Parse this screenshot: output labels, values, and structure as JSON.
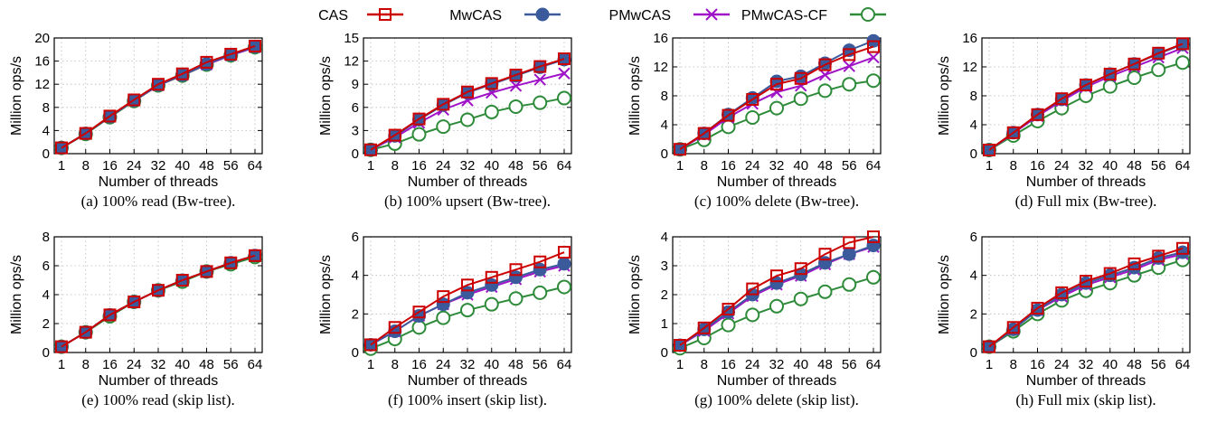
{
  "legend": [
    {
      "name": "CAS",
      "color": "#cc0000",
      "marker": "square"
    },
    {
      "name": "MwCAS",
      "color": "#3a5a9c",
      "marker": "circle-filled"
    },
    {
      "name": "PMwCAS",
      "color": "#a012c8",
      "marker": "cross"
    },
    {
      "name": "PMwCAS-CF",
      "color": "#2e8b3a",
      "marker": "circle-open"
    }
  ],
  "chart_data": [
    {
      "type": "line",
      "caption": "(a) 100% read (Bw-tree).",
      "xlabel": "Number of threads",
      "ylabel": "Million ops/s",
      "categories": [
        "1",
        "8",
        "16",
        "24",
        "32",
        "40",
        "48",
        "56",
        "64"
      ],
      "yticks": [
        0,
        4,
        8,
        12,
        16,
        20
      ],
      "ylim": [
        0,
        20
      ],
      "series": [
        {
          "name": "CAS",
          "values": [
            1.0,
            3.5,
            6.5,
            9.3,
            12.0,
            13.8,
            15.8,
            17.2,
            18.6
          ]
        },
        {
          "name": "MwCAS",
          "values": [
            1.0,
            3.5,
            6.4,
            9.2,
            11.9,
            13.6,
            15.5,
            17.1,
            18.5
          ]
        },
        {
          "name": "PMwCAS",
          "values": [
            1.0,
            3.5,
            6.4,
            9.2,
            11.8,
            13.6,
            15.4,
            17.0,
            18.4
          ]
        },
        {
          "name": "PMwCAS-CF",
          "values": [
            1.0,
            3.4,
            6.3,
            9.1,
            11.8,
            13.5,
            15.4,
            17.0,
            18.4
          ]
        }
      ]
    },
    {
      "type": "line",
      "caption": "(b) 100% upsert (Bw-tree).",
      "xlabel": "Number of threads",
      "ylabel": "Million ops/s",
      "categories": [
        "1",
        "8",
        "16",
        "24",
        "32",
        "40",
        "48",
        "56",
        "64"
      ],
      "yticks": [
        0,
        3,
        6,
        9,
        12,
        15
      ],
      "ylim": [
        0,
        15
      ],
      "series": [
        {
          "name": "CAS",
          "values": [
            0.5,
            2.4,
            4.5,
            6.4,
            8.0,
            9.1,
            10.2,
            11.3,
            12.3
          ]
        },
        {
          "name": "MwCAS",
          "values": [
            0.5,
            2.3,
            4.4,
            6.3,
            7.9,
            9.0,
            10.1,
            11.2,
            12.2
          ]
        },
        {
          "name": "PMwCAS",
          "values": [
            0.5,
            2.1,
            4.0,
            5.7,
            6.9,
            7.9,
            8.8,
            9.6,
            10.4
          ]
        },
        {
          "name": "PMwCAS-CF",
          "values": [
            0.5,
            1.3,
            2.5,
            3.5,
            4.4,
            5.4,
            6.1,
            6.6,
            7.2
          ]
        }
      ]
    },
    {
      "type": "line",
      "caption": "(c) 100% delete (Bw-tree).",
      "xlabel": "Number of threads",
      "ylabel": "Million ops/s",
      "categories": [
        "1",
        "8",
        "16",
        "24",
        "32",
        "40",
        "48",
        "56",
        "64"
      ],
      "yticks": [
        0,
        4,
        8,
        12,
        16
      ],
      "ylim": [
        0,
        16
      ],
      "series": [
        {
          "name": "CAS",
          "values": [
            0.6,
            2.8,
            5.3,
            7.5,
            9.6,
            10.4,
            12.3,
            13.7,
            14.8
          ]
        },
        {
          "name": "MwCAS",
          "values": [
            0.6,
            2.8,
            5.4,
            7.7,
            10.0,
            10.7,
            12.5,
            14.3,
            15.6
          ]
        },
        {
          "name": "PMwCAS",
          "values": [
            0.6,
            2.6,
            5.0,
            6.9,
            8.5,
            9.4,
            10.9,
            12.1,
            13.3
          ]
        },
        {
          "name": "PMwCAS-CF",
          "values": [
            0.6,
            1.9,
            3.7,
            5.0,
            6.3,
            7.6,
            8.7,
            9.6,
            10.1
          ]
        }
      ]
    },
    {
      "type": "line",
      "caption": "(d) Full mix (Bw-tree).",
      "xlabel": "Number of threads",
      "ylabel": "Million ops/s",
      "categories": [
        "1",
        "8",
        "16",
        "24",
        "32",
        "40",
        "48",
        "56",
        "64"
      ],
      "yticks": [
        0,
        4,
        8,
        12,
        16
      ],
      "ylim": [
        0,
        16
      ],
      "series": [
        {
          "name": "CAS",
          "values": [
            0.5,
            2.9,
            5.4,
            7.6,
            9.5,
            11.0,
            12.4,
            13.9,
            15.2
          ]
        },
        {
          "name": "MwCAS",
          "values": [
            0.5,
            2.9,
            5.4,
            7.5,
            9.5,
            11.0,
            12.4,
            13.8,
            15.1
          ]
        },
        {
          "name": "PMwCAS",
          "values": [
            0.5,
            2.8,
            5.2,
            7.3,
            9.2,
            10.7,
            12.0,
            13.3,
            14.6
          ]
        },
        {
          "name": "PMwCAS-CF",
          "values": [
            0.5,
            2.5,
            4.5,
            6.3,
            8.0,
            9.3,
            10.5,
            11.6,
            12.6
          ]
        }
      ]
    },
    {
      "type": "line",
      "caption": "(e) 100% read (skip list).",
      "xlabel": "Number of threads",
      "ylabel": "Million ops/s",
      "categories": [
        "1",
        "8",
        "16",
        "24",
        "32",
        "40",
        "48",
        "56",
        "64"
      ],
      "yticks": [
        0,
        2,
        4,
        6,
        8
      ],
      "ylim": [
        0,
        8
      ],
      "series": [
        {
          "name": "CAS",
          "values": [
            0.4,
            1.4,
            2.6,
            3.5,
            4.3,
            5.0,
            5.6,
            6.2,
            6.7
          ]
        },
        {
          "name": "MwCAS",
          "values": [
            0.4,
            1.4,
            2.6,
            3.5,
            4.3,
            5.0,
            5.6,
            6.2,
            6.7
          ]
        },
        {
          "name": "PMwCAS",
          "values": [
            0.4,
            1.4,
            2.6,
            3.5,
            4.3,
            5.0,
            5.6,
            6.2,
            6.7
          ]
        },
        {
          "name": "PMwCAS-CF",
          "values": [
            0.4,
            1.4,
            2.5,
            3.5,
            4.3,
            4.9,
            5.6,
            6.1,
            6.6
          ]
        }
      ]
    },
    {
      "type": "line",
      "caption": "(f) 100% insert (skip list).",
      "xlabel": "Number of threads",
      "ylabel": "Million ops/s",
      "categories": [
        "1",
        "8",
        "16",
        "24",
        "32",
        "40",
        "48",
        "56",
        "64"
      ],
      "yticks": [
        0,
        2,
        4,
        6
      ],
      "ylim": [
        0,
        6
      ],
      "series": [
        {
          "name": "CAS",
          "values": [
            0.4,
            1.3,
            2.1,
            2.9,
            3.5,
            3.9,
            4.3,
            4.7,
            5.2
          ]
        },
        {
          "name": "MwCAS",
          "values": [
            0.4,
            1.1,
            1.9,
            2.5,
            3.1,
            3.5,
            3.9,
            4.3,
            4.6
          ]
        },
        {
          "name": "PMwCAS",
          "values": [
            0.4,
            1.1,
            1.9,
            2.5,
            3.0,
            3.4,
            3.8,
            4.2,
            4.5
          ]
        },
        {
          "name": "PMwCAS-CF",
          "values": [
            0.2,
            0.7,
            1.3,
            1.8,
            2.2,
            2.5,
            2.8,
            3.1,
            3.4
          ]
        }
      ]
    },
    {
      "type": "line",
      "caption": "(g) 100% delete (skip list).",
      "xlabel": "Number of threads",
      "ylabel": "Million ops/s",
      "categories": [
        "1",
        "8",
        "16",
        "24",
        "32",
        "40",
        "48",
        "56",
        "64"
      ],
      "yticks": [
        0,
        1,
        2,
        3,
        4
      ],
      "ylim": [
        0,
        4
      ],
      "series": [
        {
          "name": "CAS",
          "values": [
            0.25,
            0.85,
            1.5,
            2.2,
            2.65,
            2.9,
            3.4,
            3.8,
            4.0
          ]
        },
        {
          "name": "MwCAS",
          "values": [
            0.25,
            0.8,
            1.4,
            2.0,
            2.4,
            2.7,
            3.1,
            3.4,
            3.7
          ]
        },
        {
          "name": "PMwCAS",
          "values": [
            0.25,
            0.75,
            1.35,
            1.95,
            2.35,
            2.65,
            3.05,
            3.4,
            3.65
          ]
        },
        {
          "name": "PMwCAS-CF",
          "values": [
            0.15,
            0.5,
            0.95,
            1.3,
            1.6,
            1.85,
            2.1,
            2.35,
            2.6
          ]
        }
      ]
    },
    {
      "type": "line",
      "caption": "(h) Full mix (skip list).",
      "xlabel": "Number of threads",
      "ylabel": "Million ops/s",
      "categories": [
        "1",
        "8",
        "16",
        "24",
        "32",
        "40",
        "48",
        "56",
        "64"
      ],
      "yticks": [
        0,
        2,
        4,
        6
      ],
      "ylim": [
        0,
        6
      ],
      "series": [
        {
          "name": "CAS",
          "values": [
            0.3,
            1.3,
            2.3,
            3.1,
            3.7,
            4.1,
            4.6,
            5.0,
            5.4
          ]
        },
        {
          "name": "MwCAS",
          "values": [
            0.3,
            1.2,
            2.2,
            3.0,
            3.6,
            4.0,
            4.4,
            4.9,
            5.2
          ]
        },
        {
          "name": "PMwCAS",
          "values": [
            0.3,
            1.2,
            2.2,
            2.9,
            3.5,
            3.9,
            4.3,
            4.8,
            5.1
          ]
        },
        {
          "name": "PMwCAS-CF",
          "values": [
            0.3,
            1.1,
            2.0,
            2.7,
            3.2,
            3.6,
            4.0,
            4.4,
            4.8
          ]
        }
      ]
    }
  ]
}
